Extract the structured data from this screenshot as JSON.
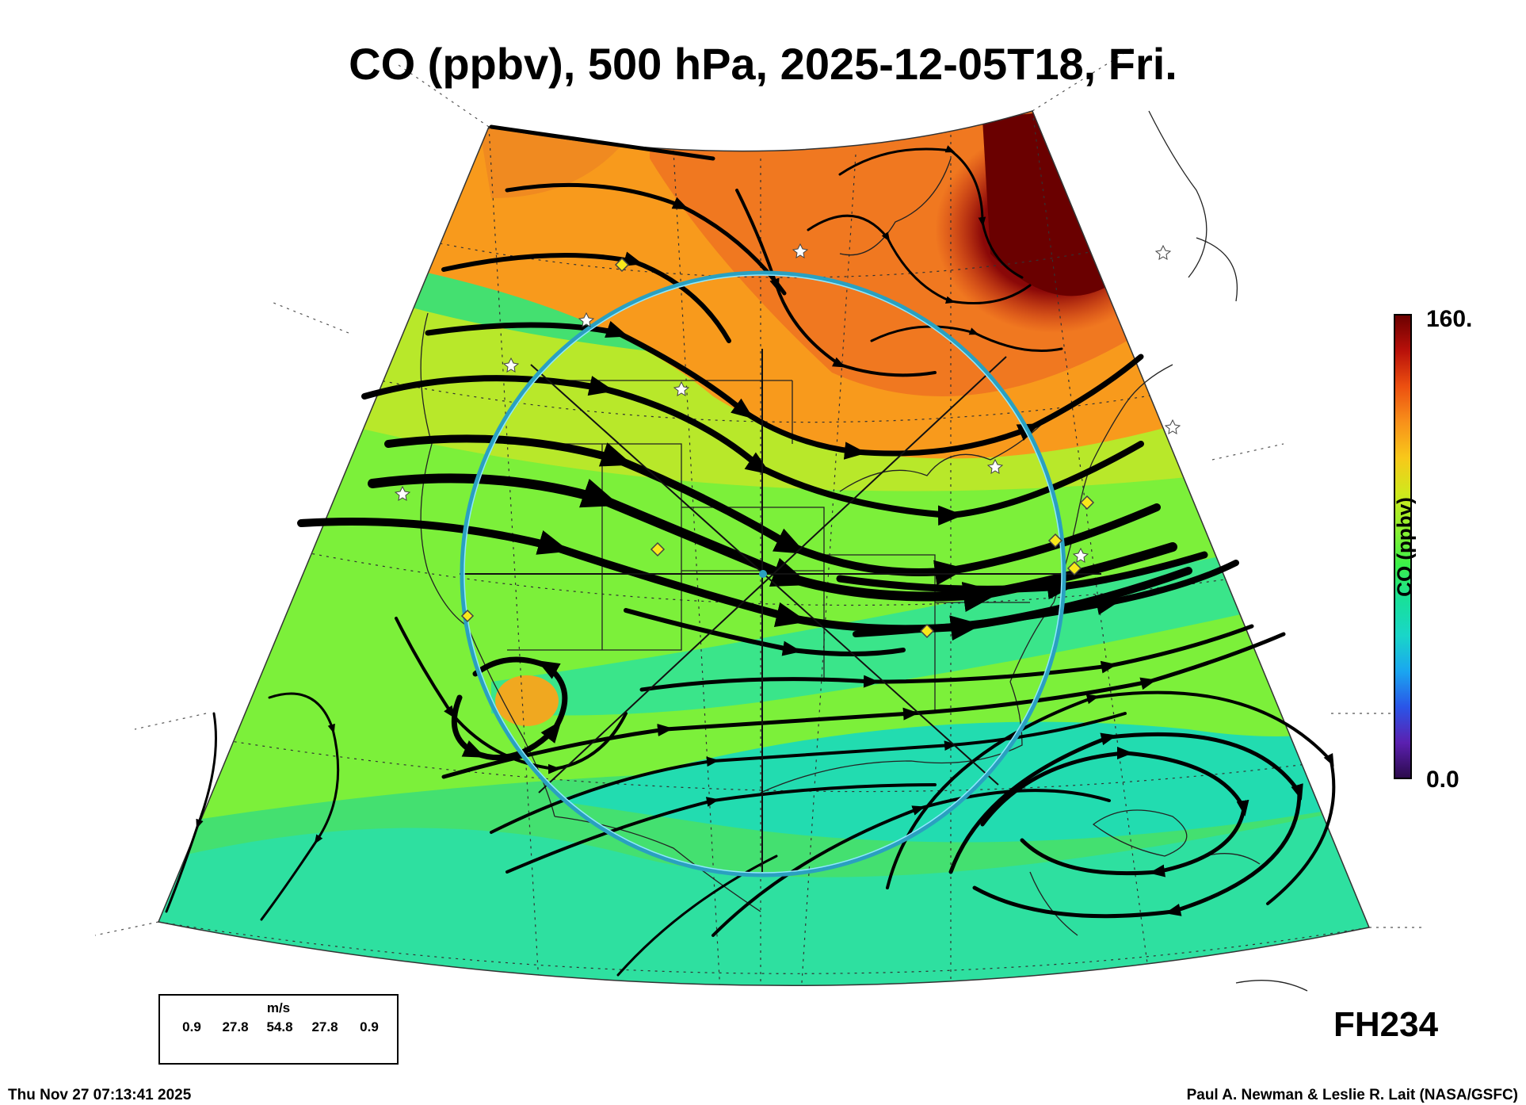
{
  "title": "CO (ppbv), 500 hPa, 2025-12-05T18, Fri.",
  "colorbar": {
    "label": "CO (ppbv)",
    "max_label": "160.",
    "min_label": "0.0",
    "colors": [
      "#2b0a4a",
      "#5b20b0",
      "#2a55e8",
      "#1aa6f0",
      "#19d6c8",
      "#18e09a",
      "#3cf048",
      "#8ef030",
      "#d0e81c",
      "#f8c81a",
      "#f8901a",
      "#ec4f10",
      "#b8100a",
      "#6a0000"
    ]
  },
  "legend": {
    "unit": "m/s",
    "values": [
      "0.9",
      "27.8",
      "54.8",
      "27.8",
      "0.9"
    ]
  },
  "forecast_hour": "FH234",
  "timestamp": "Thu Nov 27 07:13:41 2025",
  "credit": "Paul A. Newman & Leslie R. Lait (NASA/GSFC)"
}
